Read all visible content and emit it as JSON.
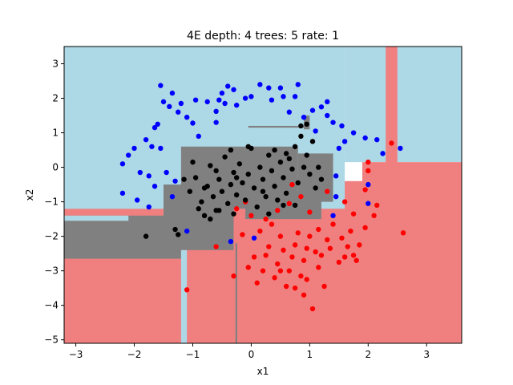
{
  "chart_data": {
    "type": "scatter",
    "title": "4E depth: 4 trees: 5 rate: 1",
    "xlabel": "x1",
    "ylabel": "x2",
    "xlim": [
      -3.2,
      3.6
    ],
    "ylim": [
      -5.1,
      3.5
    ],
    "xticks": [
      -3,
      -2,
      -1,
      0,
      1,
      2,
      3
    ],
    "yticks": [
      -5,
      -4,
      -3,
      -2,
      -1,
      0,
      1,
      2,
      3
    ],
    "grid": false,
    "legend": "none",
    "colors": {
      "region_blue": "#add8e6",
      "region_red": "#f08080",
      "region_gray": "#808080",
      "point_blue": "#0000ff",
      "point_red": "#ff0000",
      "point_black": "#000000"
    },
    "regions": [
      {
        "label": "red",
        "x": [
          -3.2,
          3.6
        ],
        "y": [
          -5.1,
          -0.4
        ]
      },
      {
        "label": "blue",
        "x": [
          -3.2,
          1.6
        ],
        "y": [
          -1.2,
          3.5
        ]
      },
      {
        "label": "blue",
        "x": [
          1.6,
          3.6
        ],
        "y": [
          0.15,
          3.5
        ]
      },
      {
        "label": "blue",
        "x": [
          -3.2,
          -1.2
        ],
        "y": [
          -1.2,
          -0.4
        ]
      },
      {
        "label": "red",
        "x": [
          2.3,
          2.5
        ],
        "y": [
          0.1,
          3.5
        ]
      },
      {
        "label": "gray",
        "x": [
          -3.2,
          -1.2
        ],
        "y": [
          -2.65,
          -1.4
        ]
      },
      {
        "label": "gray",
        "x": [
          -1.5,
          -0.3
        ],
        "y": [
          -2.4,
          -0.5
        ]
      },
      {
        "label": "gray",
        "x": [
          -1.2,
          0.8
        ],
        "y": [
          -1.2,
          0.6
        ]
      },
      {
        "label": "gray",
        "x": [
          0.8,
          1.4
        ],
        "y": [
          -1.0,
          0.4
        ]
      },
      {
        "label": "gray",
        "x": [
          -0.1,
          1.2
        ],
        "y": [
          -1.5,
          -0.7
        ]
      },
      {
        "label": "gray",
        "x": [
          0.9,
          1.0
        ],
        "y": [
          1.1,
          1.5
        ]
      },
      {
        "label": "gray",
        "x": [
          -0.05,
          0.95
        ],
        "y": [
          1.15,
          1.2
        ]
      },
      {
        "label": "blue",
        "x": [
          -1.2,
          -1.1
        ],
        "y": [
          -5.1,
          -2.4
        ]
      },
      {
        "label": "blue",
        "x": [
          -3.2,
          -2.1
        ],
        "y": [
          -1.55,
          -1.4
        ]
      },
      {
        "label": "gray",
        "x": [
          -0.27,
          -0.24
        ],
        "y": [
          -5.1,
          -2.2
        ]
      },
      {
        "label": "red",
        "x": [
          1.9,
          3.6
        ],
        "y": [
          -1.3,
          0.15
        ]
      }
    ],
    "series": [
      {
        "name": "",
        "color": "blue",
        "points": [
          [
            -1.55,
            2.37
          ],
          [
            -1.5,
            1.9
          ],
          [
            -1.4,
            1.76
          ],
          [
            -1.35,
            2.15
          ],
          [
            -1.25,
            1.6
          ],
          [
            -1.2,
            1.85
          ],
          [
            -1.1,
            1.45
          ],
          [
            -0.95,
            1.95
          ],
          [
            -0.75,
            1.9
          ],
          [
            -0.55,
            1.95
          ],
          [
            -0.6,
            1.62
          ],
          [
            -0.5,
            2.15
          ],
          [
            -0.45,
            1.85
          ],
          [
            -0.4,
            2.35
          ],
          [
            -0.3,
            2.25
          ],
          [
            -0.25,
            1.8
          ],
          [
            -0.1,
            2.0
          ],
          [
            0.0,
            2.05
          ],
          [
            0.15,
            2.4
          ],
          [
            0.3,
            2.3
          ],
          [
            0.35,
            1.95
          ],
          [
            0.5,
            2.3
          ],
          [
            0.55,
            2.05
          ],
          [
            0.65,
            1.6
          ],
          [
            0.75,
            2.05
          ],
          [
            0.9,
            1.45
          ],
          [
            1.05,
            1.65
          ],
          [
            1.2,
            1.75
          ],
          [
            1.3,
            1.5
          ],
          [
            1.4,
            1.3
          ],
          [
            1.55,
            1.2
          ],
          [
            1.6,
            0.75
          ],
          [
            1.75,
            1.0
          ],
          [
            1.95,
            0.85
          ],
          [
            2.15,
            0.8
          ],
          [
            2.25,
            0.4
          ],
          [
            2.55,
            0.55
          ],
          [
            -1.0,
            1.28
          ],
          [
            -0.9,
            0.9
          ],
          [
            -0.6,
            1.3
          ],
          [
            -1.6,
            1.25
          ],
          [
            -1.8,
            0.8
          ],
          [
            -2.0,
            0.55
          ],
          [
            -2.1,
            0.35
          ],
          [
            -2.2,
            0.1
          ],
          [
            -1.9,
            -0.15
          ],
          [
            -1.75,
            -0.25
          ],
          [
            -1.65,
            -0.55
          ],
          [
            -1.95,
            -0.95
          ],
          [
            -1.75,
            -1.15
          ],
          [
            -2.2,
            -0.75
          ],
          [
            -1.45,
            -0.15
          ],
          [
            -1.3,
            -0.4
          ],
          [
            -1.35,
            -0.85
          ],
          [
            -1.7,
            0.6
          ],
          [
            -1.55,
            0.55
          ],
          [
            -1.65,
            1.15
          ],
          [
            -0.35,
            -2.15
          ],
          [
            0.05,
            -2.05
          ],
          [
            1.5,
            0.55
          ],
          [
            1.45,
            -0.85
          ],
          [
            1.45,
            -0.25
          ],
          [
            2.0,
            -0.5
          ],
          [
            2.0,
            -1.05
          ],
          [
            1.4,
            -1.4
          ],
          [
            1.1,
            1.05
          ],
          [
            1.3,
            1.9
          ],
          [
            0.8,
            2.4
          ],
          [
            -1.1,
            -1.85
          ]
        ]
      },
      {
        "name": "",
        "color": "red",
        "points": [
          [
            2.4,
            0.7
          ],
          [
            2.6,
            -1.9
          ],
          [
            2.1,
            -1.4
          ],
          [
            2.0,
            -0.1
          ],
          [
            2.0,
            0.15
          ],
          [
            1.95,
            -0.65
          ],
          [
            1.75,
            -1.35
          ],
          [
            1.7,
            -1.85
          ],
          [
            1.65,
            -2.3
          ],
          [
            1.75,
            -2.55
          ],
          [
            1.6,
            -2.6
          ],
          [
            1.5,
            -2.75
          ],
          [
            1.4,
            -1.65
          ],
          [
            1.35,
            -2.35
          ],
          [
            1.3,
            -2.1
          ],
          [
            1.2,
            -2.55
          ],
          [
            1.15,
            -2.9
          ],
          [
            1.1,
            -2.45
          ],
          [
            1.0,
            -2.0
          ],
          [
            0.95,
            -2.35
          ],
          [
            0.9,
            -2.7
          ],
          [
            0.85,
            -3.15
          ],
          [
            0.8,
            -1.9
          ],
          [
            0.75,
            -2.25
          ],
          [
            0.7,
            -2.6
          ],
          [
            0.65,
            -3.0
          ],
          [
            0.6,
            -3.45
          ],
          [
            0.55,
            -2.4
          ],
          [
            0.5,
            -2.0
          ],
          [
            0.45,
            -2.8
          ],
          [
            0.4,
            -3.2
          ],
          [
            0.35,
            -1.65
          ],
          [
            0.3,
            -2.3
          ],
          [
            0.25,
            -2.55
          ],
          [
            0.2,
            -3.0
          ],
          [
            0.15,
            -1.85
          ],
          [
            0.1,
            -3.35
          ],
          [
            0.05,
            -2.6
          ],
          [
            0.0,
            -1.4
          ],
          [
            -0.05,
            -2.9
          ],
          [
            -0.15,
            -1.95
          ],
          [
            -0.25,
            -1.2
          ],
          [
            -0.3,
            -3.15
          ],
          [
            -0.6,
            -2.3
          ],
          [
            -1.1,
            -3.55
          ],
          [
            1.05,
            -4.1
          ],
          [
            0.9,
            -3.7
          ],
          [
            1.25,
            -3.45
          ],
          [
            0.95,
            -3.25
          ],
          [
            0.75,
            -3.5
          ],
          [
            1.55,
            -2.05
          ],
          [
            1.85,
            -2.25
          ],
          [
            1.95,
            -1.75
          ],
          [
            2.15,
            -1.1
          ],
          [
            0.65,
            -1.05
          ],
          [
            0.85,
            -0.85
          ],
          [
            1.3,
            -0.7
          ],
          [
            1.6,
            -1.0
          ],
          [
            0.45,
            -1.25
          ],
          [
            0.25,
            -1.5
          ],
          [
            -0.1,
            -1.0
          ],
          [
            0.7,
            -0.5
          ],
          [
            1.0,
            -1.3
          ],
          [
            1.8,
            -2.7
          ],
          [
            0.5,
            -3.0
          ],
          [
            1.15,
            -1.8
          ]
        ]
      },
      {
        "name": "",
        "color": "black",
        "points": [
          [
            -1.15,
            -0.35
          ],
          [
            -1.05,
            -0.7
          ],
          [
            -1.0,
            0.15
          ],
          [
            -0.95,
            -0.3
          ],
          [
            -0.85,
            -1.0
          ],
          [
            -0.8,
            -1.4
          ],
          [
            -0.75,
            -0.55
          ],
          [
            -0.7,
            0.05
          ],
          [
            -0.65,
            -0.85
          ],
          [
            -0.6,
            -1.25
          ],
          [
            -0.55,
            -0.35
          ],
          [
            -0.5,
            -0.7
          ],
          [
            -0.45,
            0.3
          ],
          [
            -0.4,
            -1.05
          ],
          [
            -0.35,
            -0.5
          ],
          [
            -0.3,
            -0.15
          ],
          [
            -0.25,
            -0.8
          ],
          [
            -0.2,
            0.1
          ],
          [
            -0.15,
            -0.45
          ],
          [
            -0.1,
            -0.95
          ],
          [
            -0.05,
            -0.2
          ],
          [
            0.0,
            0.55
          ],
          [
            0.05,
            -0.6
          ],
          [
            0.1,
            -1.15
          ],
          [
            0.15,
            0.0
          ],
          [
            0.2,
            -0.35
          ],
          [
            0.25,
            -0.85
          ],
          [
            0.3,
            0.35
          ],
          [
            0.35,
            -0.1
          ],
          [
            0.4,
            -0.55
          ],
          [
            0.45,
            -0.95
          ],
          [
            0.5,
            0.15
          ],
          [
            0.55,
            -0.3
          ],
          [
            0.6,
            -0.75
          ],
          [
            0.65,
            0.25
          ],
          [
            0.7,
            -0.05
          ],
          [
            0.75,
            0.6
          ],
          [
            0.8,
            -0.45
          ],
          [
            0.85,
            0.9
          ],
          [
            0.9,
            0.0
          ],
          [
            0.95,
            0.35
          ],
          [
            1.0,
            -0.2
          ],
          [
            1.05,
            0.75
          ],
          [
            1.1,
            -0.6
          ],
          [
            1.15,
            0.0
          ],
          [
            1.2,
            -0.35
          ],
          [
            0.85,
            1.2
          ],
          [
            0.95,
            1.25
          ],
          [
            -1.8,
            -2.0
          ],
          [
            -1.25,
            -1.95
          ],
          [
            -0.9,
            -1.2
          ],
          [
            -0.7,
            -1.5
          ],
          [
            -0.55,
            -1.25
          ],
          [
            -0.3,
            -1.35
          ],
          [
            0.3,
            -1.35
          ],
          [
            0.55,
            -1.1
          ],
          [
            0.75,
            -1.1
          ],
          [
            -0.35,
            0.5
          ],
          [
            -0.05,
            0.6
          ],
          [
            0.4,
            0.5
          ],
          [
            -0.6,
            -0.1
          ],
          [
            -1.3,
            -1.8
          ],
          [
            0.6,
            0.4
          ],
          [
            -0.8,
            -0.6
          ],
          [
            -0.25,
            -0.3
          ],
          [
            0.2,
            -0.7
          ]
        ]
      }
    ]
  }
}
